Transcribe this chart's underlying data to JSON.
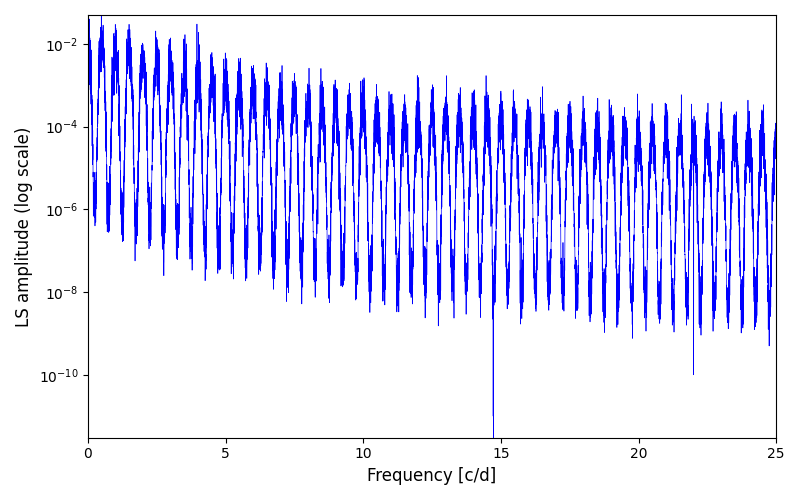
{
  "xlabel": "Frequency [c/d]",
  "ylabel": "LS amplitude (log scale)",
  "xlim": [
    0,
    25
  ],
  "ylim": [
    3e-12,
    0.05
  ],
  "line_color": "#0000ff",
  "line_width": 0.5,
  "yscale": "log",
  "figsize": [
    8.0,
    5.0
  ],
  "dpi": 100,
  "freq_max": 25.0,
  "n_points": 10000,
  "seed": 7,
  "yticks_log": [
    -10,
    -8,
    -6,
    -4,
    -2
  ]
}
